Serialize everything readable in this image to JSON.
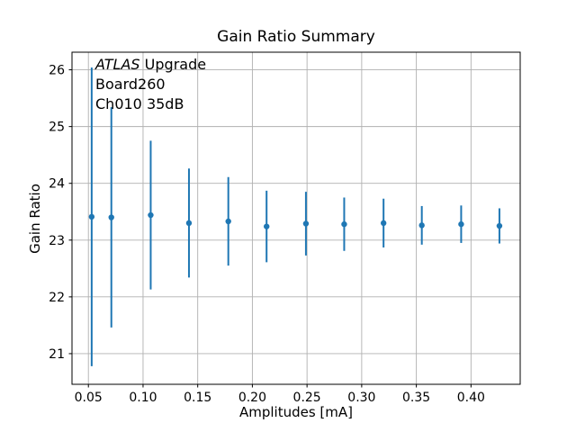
{
  "chart_data": {
    "type": "scatter",
    "title": "Gain Ratio Summary",
    "xlabel": "Amplitudes [mA]",
    "ylabel": "Gain Ratio",
    "x": [
      0.053,
      0.071,
      0.107,
      0.142,
      0.178,
      0.213,
      0.249,
      0.284,
      0.32,
      0.355,
      0.391,
      0.426
    ],
    "y": [
      23.41,
      23.4,
      23.44,
      23.3,
      23.33,
      23.24,
      23.29,
      23.28,
      23.3,
      23.26,
      23.28,
      23.25
    ],
    "y_err": [
      2.63,
      1.94,
      1.31,
      0.96,
      0.78,
      0.63,
      0.56,
      0.47,
      0.43,
      0.34,
      0.33,
      0.31
    ],
    "xlim": [
      0.035,
      0.445
    ],
    "ylim": [
      20.46,
      26.31
    ],
    "xticks": [
      0.05,
      0.1,
      0.15,
      0.2,
      0.25,
      0.3,
      0.35,
      0.4
    ],
    "xtick_labels": [
      "0.05",
      "0.10",
      "0.15",
      "0.20",
      "0.25",
      "0.30",
      "0.35",
      "0.40"
    ],
    "yticks": [
      21,
      22,
      23,
      24,
      25,
      26
    ],
    "ytick_labels": [
      "21",
      "22",
      "23",
      "24",
      "25",
      "26"
    ],
    "grid": true,
    "legend": "none",
    "marker_color": "#1f77b4",
    "grid_color": "#b0b0b0",
    "spine_color": "#000000",
    "annotation": {
      "line1_italic": "ATLAS",
      "line1_rest": " Upgrade",
      "line2": "Board260",
      "line3": "Ch010 35dB"
    }
  }
}
